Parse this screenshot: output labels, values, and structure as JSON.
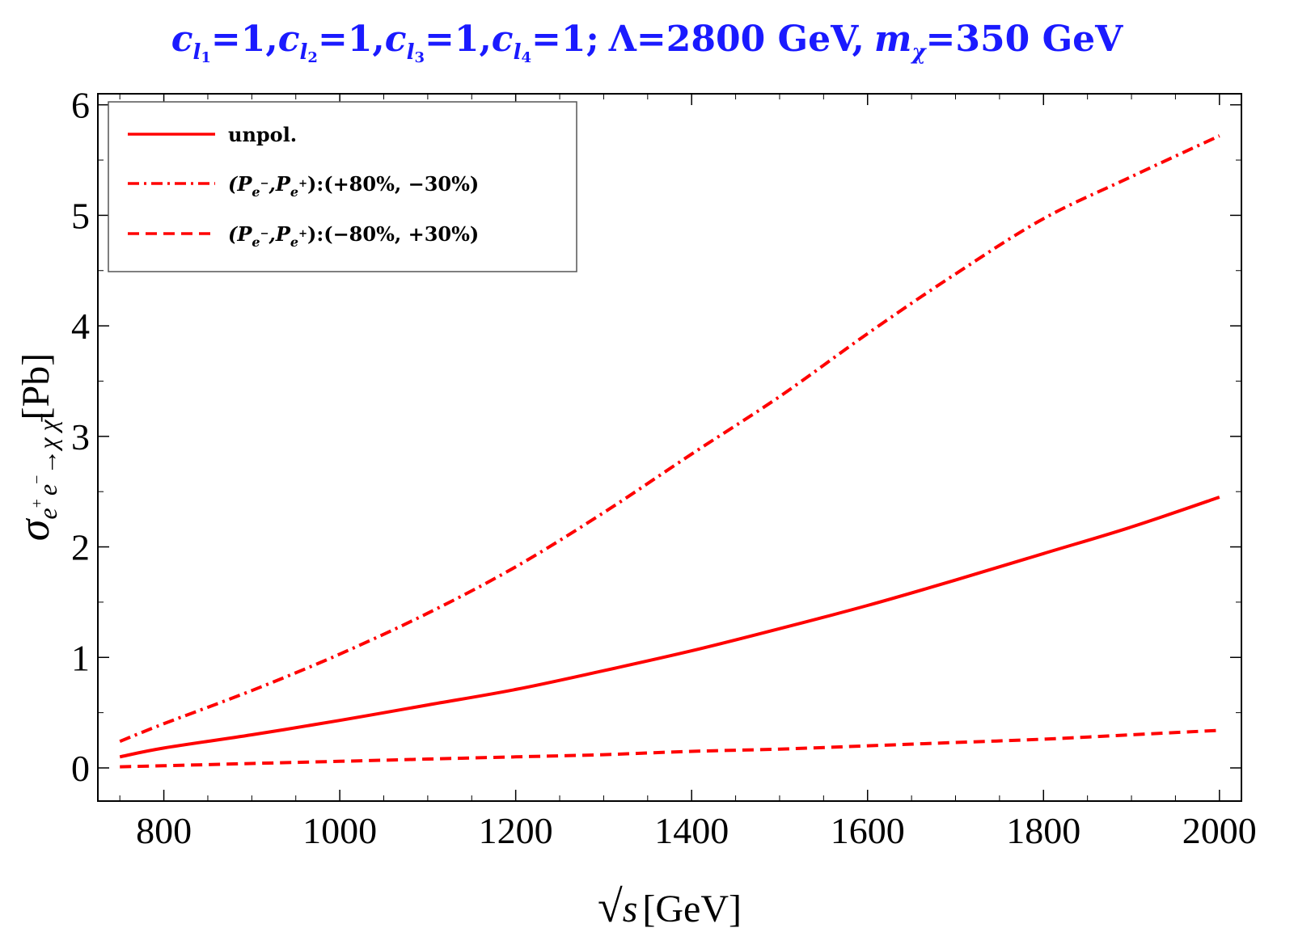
{
  "chart_data": {
    "type": "line",
    "title_parts": {
      "c1": "c",
      "c1_sub": "l",
      "c1_subsub": "1",
      "c1_val": "=1,",
      "c2": "c",
      "c2_sub": "l",
      "c2_subsub": "2",
      "c2_val": "=1,",
      "c3": "c",
      "c3_sub": "l",
      "c3_subsub": "3",
      "c3_val": "=1,",
      "c4": "c",
      "c4_sub": "l",
      "c4_subsub": "4",
      "c4_val": "=1;",
      "lambda": "Λ=2800 GeV,",
      "m": "m",
      "m_sub": "χ",
      "m_val": "=350 GeV"
    },
    "xlabel": {
      "root": "√",
      "var": "s",
      "unit": "[GeV]"
    },
    "ylabel": {
      "sigma": "σ",
      "sub": "e",
      "sup1": "+",
      "sub2": "e",
      "sup2": "−",
      "arrow": "→χ χ̄",
      "unit": "[Pb]"
    },
    "xlim": [
      725,
      2025
    ],
    "ylim": [
      -0.3,
      6.1
    ],
    "xticks": [
      800,
      1000,
      1200,
      1400,
      1600,
      1800,
      2000
    ],
    "yticks": [
      0,
      1,
      2,
      3,
      4,
      5,
      6
    ],
    "x": [
      750,
      800,
      900,
      1000,
      1100,
      1200,
      1300,
      1400,
      1500,
      1600,
      1700,
      1800,
      1900,
      2000
    ],
    "series": [
      {
        "name": "unpol.",
        "style": "solid",
        "color": "#ff0000",
        "values": [
          0.1,
          0.18,
          0.3,
          0.43,
          0.57,
          0.71,
          0.88,
          1.06,
          1.26,
          1.47,
          1.7,
          1.94,
          2.18,
          2.45
        ]
      },
      {
        "name": "(P, P):(+80%, −30%)",
        "style": "dashdot",
        "color": "#ff0000",
        "values": [
          0.24,
          0.4,
          0.7,
          1.03,
          1.4,
          1.82,
          2.31,
          2.84,
          3.36,
          3.93,
          4.47,
          4.97,
          5.35,
          5.72
        ]
      },
      {
        "name": "(P, P):(−80%, +30%)",
        "style": "dashed",
        "color": "#ff0000",
        "values": [
          0.01,
          0.02,
          0.04,
          0.06,
          0.08,
          0.1,
          0.12,
          0.15,
          0.17,
          0.2,
          0.23,
          0.26,
          0.3,
          0.34
        ]
      }
    ],
    "legend": {
      "placement": "top-left",
      "items": [
        {
          "text": "unpol.",
          "style": "solid"
        },
        {
          "pre": "(P",
          "s1": "e",
          "s1s": "−",
          "mid": ",P",
          "s2": "e",
          "s2s": "+",
          "post": "):(+80%, −30%)",
          "style": "dashdot"
        },
        {
          "pre": "(P",
          "s1": "e",
          "s1s": "−",
          "mid": ",P",
          "s2": "e",
          "s2s": "+",
          "post": "):(−80%, +30%)",
          "style": "dashed"
        }
      ]
    },
    "grid": false
  }
}
